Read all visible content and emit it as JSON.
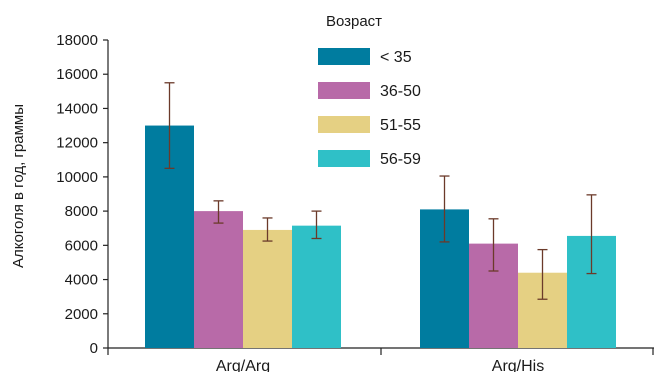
{
  "chart_data": {
    "type": "bar",
    "title": "",
    "xlabel": "",
    "ylabel": "Алкоголя в год, граммы",
    "ylim": [
      0,
      18000
    ],
    "yticks": [
      0,
      2000,
      4000,
      6000,
      8000,
      10000,
      12000,
      14000,
      16000,
      18000
    ],
    "grid": false,
    "legend": {
      "title": "Возраст",
      "placement": "top-center"
    },
    "categories": [
      "Arg/Arg",
      "Arg/His"
    ],
    "series": [
      {
        "name": "< 35",
        "color": "#007C9F",
        "values": [
          13000,
          8100
        ],
        "error_low": [
          10500,
          6200
        ],
        "error_high": [
          15500,
          10050
        ]
      },
      {
        "name": "36-50",
        "color": "#B86AA8",
        "values": [
          8000,
          6100
        ],
        "error_low": [
          7300,
          4500
        ],
        "error_high": [
          8600,
          7550
        ]
      },
      {
        "name": "51-55",
        "color": "#E5D083",
        "values": [
          6900,
          4400
        ],
        "error_low": [
          6250,
          2850
        ],
        "error_high": [
          7600,
          5750
        ]
      },
      {
        "name": "56-59",
        "color": "#2FC0C7",
        "values": [
          7150,
          6550
        ],
        "error_low": [
          6400,
          4350
        ],
        "error_high": [
          8000,
          8950
        ]
      }
    ]
  }
}
